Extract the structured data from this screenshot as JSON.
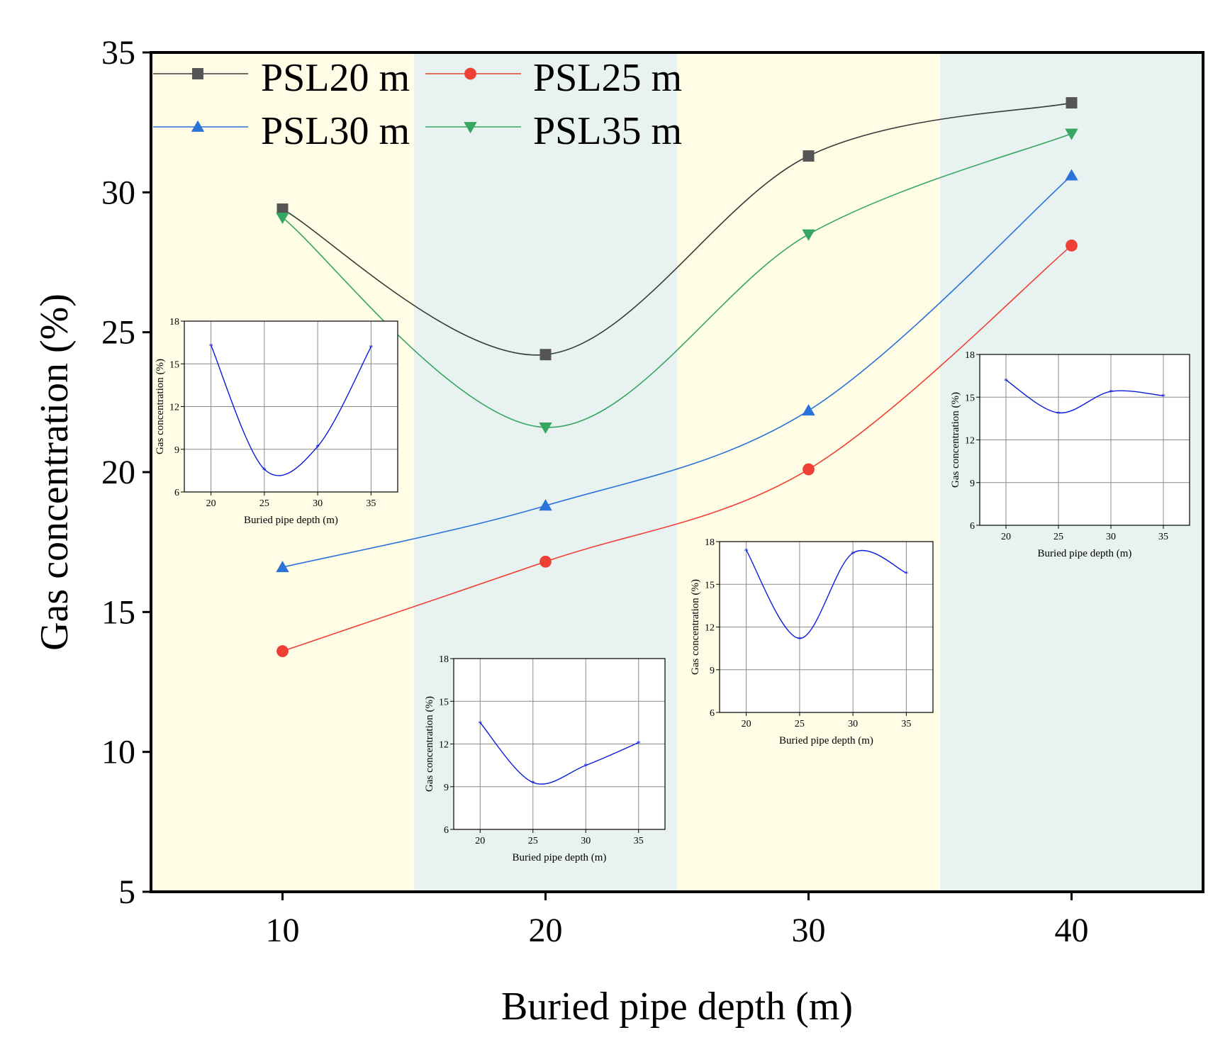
{
  "chart_data": {
    "type": "line",
    "xlabel": "Buried pipe depth (m)",
    "ylabel": "Gas concentration (%)",
    "xlim": [
      5,
      45
    ],
    "ylim": [
      5,
      35
    ],
    "xticks": [
      10,
      20,
      30,
      40
    ],
    "yticks": [
      5,
      10,
      15,
      20,
      25,
      30,
      35
    ],
    "x": [
      10,
      20,
      30,
      40
    ],
    "background_bands": [
      {
        "from": 5,
        "to": 15,
        "color": "#fffde6"
      },
      {
        "from": 15,
        "to": 25,
        "color": "#e8f3f1"
      },
      {
        "from": 25,
        "to": 35,
        "color": "#fffde6"
      },
      {
        "from": 35,
        "to": 45,
        "color": "#e8f3f1"
      }
    ],
    "legend_position": "top-left",
    "series": [
      {
        "name": "PSL20 m",
        "marker": "square",
        "color": "#555555",
        "line_color": "#3a3a3a",
        "values": [
          29.4,
          24.2,
          31.3,
          33.2
        ]
      },
      {
        "name": "PSL25 m",
        "marker": "circle",
        "color": "#ee4035",
        "line_color": "#ee4035",
        "values": [
          13.6,
          16.8,
          20.1,
          28.1
        ]
      },
      {
        "name": "PSL30 m",
        "marker": "triangle-up",
        "color": "#2a73d9",
        "line_color": "#2a73d9",
        "values": [
          16.6,
          18.8,
          22.2,
          30.6
        ]
      },
      {
        "name": "PSL35 m",
        "marker": "triangle-down",
        "color": "#36a663",
        "line_color": "#36a663",
        "values": [
          29.1,
          21.6,
          28.5,
          32.1
        ]
      }
    ],
    "insets": [
      {
        "name": "inset-1",
        "xlabel": "Buried pipe depth (m)",
        "ylabel": "Gas concentration (%)",
        "xlim": [
          17.5,
          37.5
        ],
        "ylim": [
          6,
          18
        ],
        "xticks": [
          20,
          25,
          30,
          35
        ],
        "yticks": [
          6,
          9,
          12,
          15,
          18
        ],
        "x": [
          20,
          25,
          30,
          35
        ],
        "values": [
          16.3,
          7.6,
          9.2,
          16.2
        ],
        "color": "#0a1adb"
      },
      {
        "name": "inset-2",
        "xlabel": "Buried pipe depth (m)",
        "ylabel": "Gas concentration (%)",
        "xlim": [
          17.5,
          37.5
        ],
        "ylim": [
          6,
          18
        ],
        "xticks": [
          20,
          25,
          30,
          35
        ],
        "yticks": [
          6,
          9,
          12,
          15,
          18
        ],
        "x": [
          20,
          25,
          30,
          35
        ],
        "values": [
          13.5,
          9.3,
          10.5,
          12.1
        ],
        "color": "#0a1adb"
      },
      {
        "name": "inset-3",
        "xlabel": "Buried pipe depth (m)",
        "ylabel": "Gas concentration (%)",
        "xlim": [
          17.5,
          37.5
        ],
        "ylim": [
          6,
          18
        ],
        "xticks": [
          20,
          25,
          30,
          35
        ],
        "yticks": [
          6,
          9,
          12,
          15,
          18
        ],
        "x": [
          20,
          25,
          30,
          35
        ],
        "values": [
          17.4,
          11.2,
          17.2,
          15.8
        ],
        "color": "#0a1adb"
      },
      {
        "name": "inset-4",
        "xlabel": "Buried pipe depth (m)",
        "ylabel": "Gas concentration (%)",
        "xlim": [
          17.5,
          37.5
        ],
        "ylim": [
          6,
          18
        ],
        "xticks": [
          20,
          25,
          30,
          35
        ],
        "yticks": [
          6,
          9,
          12,
          15,
          18
        ],
        "x": [
          20,
          25,
          30,
          35
        ],
        "values": [
          16.2,
          13.9,
          15.4,
          15.1
        ],
        "color": "#0a1adb"
      }
    ]
  }
}
